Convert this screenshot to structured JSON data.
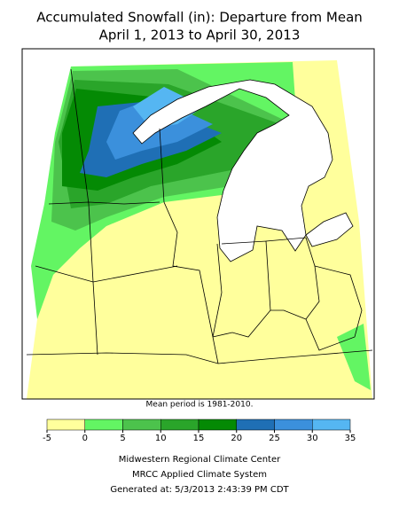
{
  "header": {
    "title": "Accumulated Snowfall (in): Departure from Mean",
    "subtitle": "April 1, 2013 to April 30, 2013"
  },
  "note": "Mean period is 1981-2010.",
  "legend": {
    "ticks": [
      -5,
      0,
      5,
      10,
      15,
      20,
      25,
      30,
      35
    ],
    "colors": [
      "#ffff9c",
      "#63f563",
      "#4cc34c",
      "#2aa52a",
      "#048a04",
      "#1f6fb5",
      "#3b90dc",
      "#55b6f2"
    ]
  },
  "footer": [
    "Midwestern Regional Climate Center",
    "MRCC Applied Climate System",
    "Generated at: 5/3/2013 2:43:39 PM CDT"
  ]
}
